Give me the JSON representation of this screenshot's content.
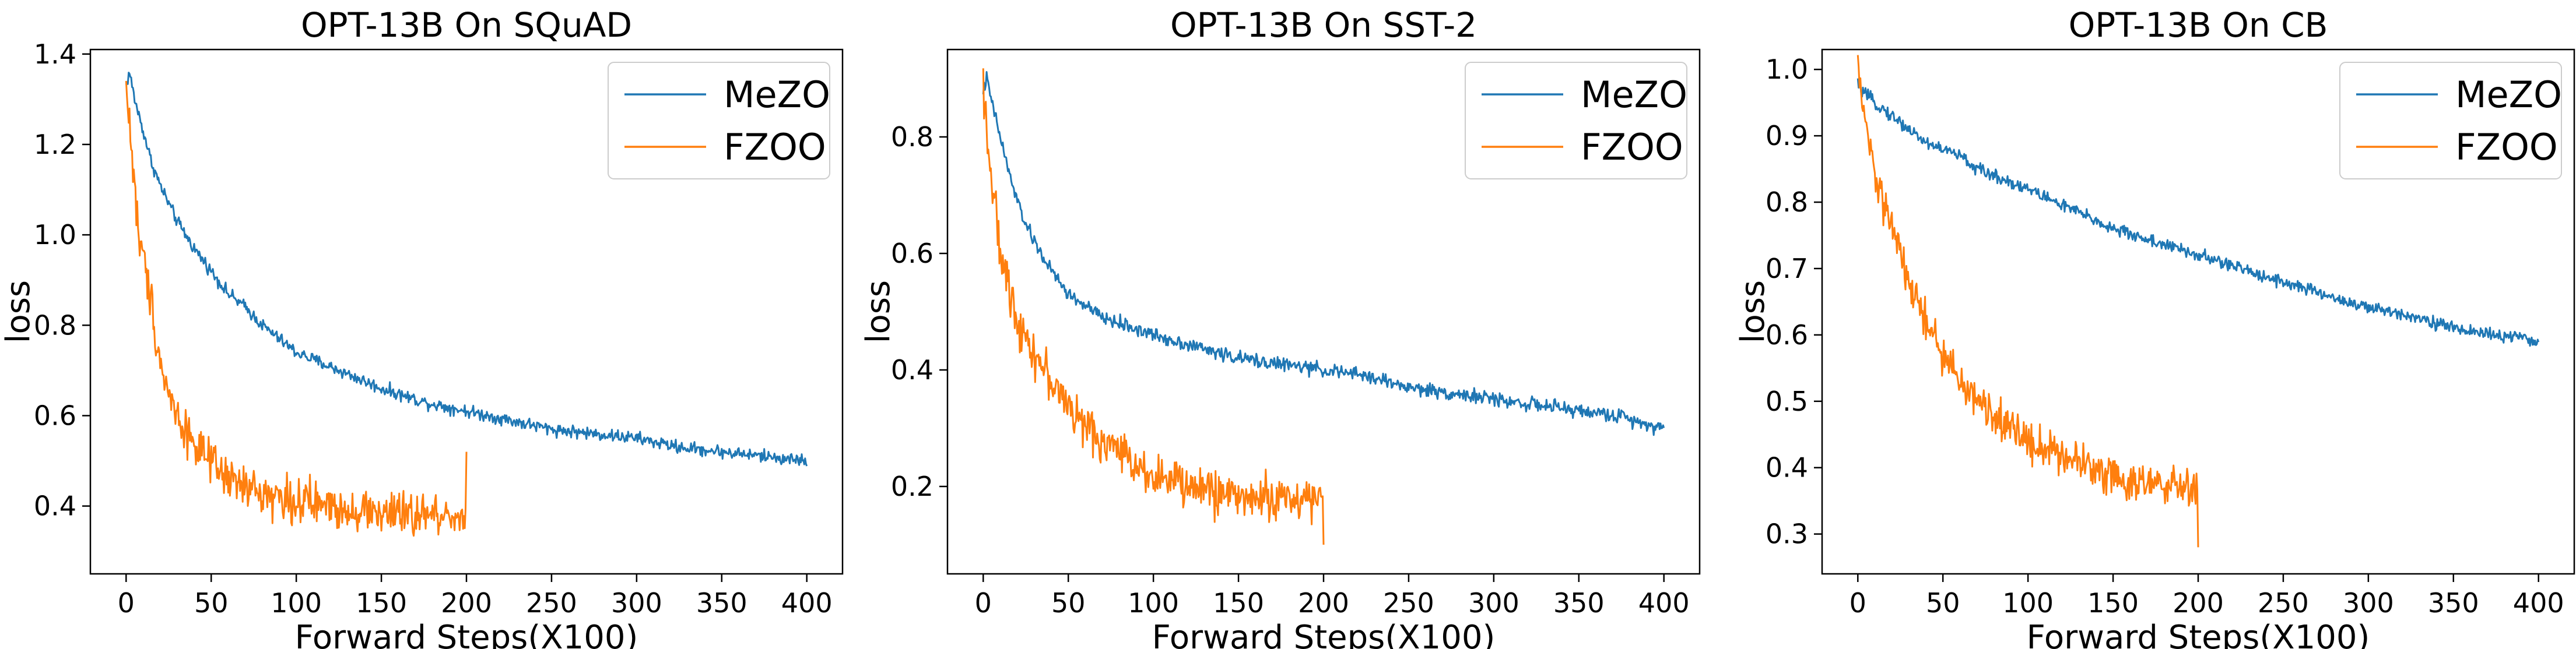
{
  "chart_data": [
    {
      "type": "line",
      "title": "OPT-13B On SQuAD",
      "xlabel": "Forward Steps(X100)",
      "ylabel": "loss",
      "xlim": [
        -21,
        421
      ],
      "ylim": [
        0.25,
        1.41
      ],
      "xticks": [
        0,
        50,
        100,
        150,
        200,
        250,
        300,
        350,
        400
      ],
      "yticks": [
        0.4,
        0.6,
        0.8,
        1.0,
        1.2,
        1.4
      ],
      "yticklabels": [
        "0.4",
        "0.6",
        "0.8",
        "1.0",
        "1.2",
        "1.4"
      ],
      "legend_position": "top-right",
      "series": [
        {
          "name": "MeZO",
          "color": "#1f77b4",
          "x": [
            0,
            2,
            5,
            10,
            15,
            20,
            25,
            30,
            40,
            50,
            60,
            70,
            80,
            90,
            100,
            125,
            150,
            175,
            200,
            225,
            250,
            275,
            300,
            325,
            350,
            375,
            400
          ],
          "y": [
            1.33,
            1.36,
            1.3,
            1.23,
            1.16,
            1.11,
            1.07,
            1.03,
            0.97,
            0.92,
            0.87,
            0.84,
            0.8,
            0.77,
            0.74,
            0.7,
            0.66,
            0.63,
            0.61,
            0.59,
            0.57,
            0.56,
            0.55,
            0.53,
            0.52,
            0.51,
            0.5
          ],
          "noise": 0.013
        },
        {
          "name": "FZOO",
          "color": "#ff7f0e",
          "x": [
            0,
            2,
            5,
            8,
            10,
            15,
            20,
            25,
            30,
            40,
            50,
            60,
            70,
            80,
            90,
            100,
            120,
            140,
            160,
            180,
            200
          ],
          "y": [
            1.33,
            1.25,
            1.1,
            0.98,
            0.95,
            0.85,
            0.72,
            0.65,
            0.6,
            0.54,
            0.49,
            0.46,
            0.44,
            0.43,
            0.42,
            0.41,
            0.4,
            0.39,
            0.38,
            0.38,
            0.38
          ],
          "noise": 0.045,
          "end_spike": 0.52
        }
      ]
    },
    {
      "type": "line",
      "title": "OPT-13B On SST-2",
      "xlabel": "Forward Steps(X100)",
      "ylabel": "loss",
      "xlim": [
        -21,
        421
      ],
      "ylim": [
        0.05,
        0.95
      ],
      "xticks": [
        0,
        50,
        100,
        150,
        200,
        250,
        300,
        350,
        400
      ],
      "yticks": [
        0.2,
        0.4,
        0.6,
        0.8
      ],
      "yticklabels": [
        "0.2",
        "0.4",
        "0.6",
        "0.8"
      ],
      "legend_position": "top-right",
      "series": [
        {
          "name": "MeZO",
          "color": "#1f77b4",
          "x": [
            0,
            2,
            5,
            10,
            15,
            20,
            25,
            30,
            40,
            50,
            60,
            70,
            80,
            90,
            100,
            125,
            150,
            175,
            200,
            225,
            250,
            275,
            300,
            325,
            350,
            375,
            400
          ],
          "y": [
            0.88,
            0.9,
            0.86,
            0.8,
            0.74,
            0.69,
            0.65,
            0.62,
            0.57,
            0.53,
            0.51,
            0.49,
            0.48,
            0.47,
            0.46,
            0.44,
            0.42,
            0.41,
            0.4,
            0.39,
            0.37,
            0.36,
            0.35,
            0.34,
            0.33,
            0.32,
            0.3
          ],
          "noise": 0.011
        },
        {
          "name": "FZOO",
          "color": "#ff7f0e",
          "x": [
            0,
            2,
            5,
            8,
            10,
            15,
            20,
            25,
            30,
            40,
            50,
            60,
            70,
            80,
            90,
            100,
            120,
            140,
            160,
            180,
            200
          ],
          "y": [
            0.9,
            0.82,
            0.72,
            0.65,
            0.6,
            0.54,
            0.49,
            0.46,
            0.43,
            0.38,
            0.34,
            0.3,
            0.28,
            0.26,
            0.24,
            0.22,
            0.2,
            0.19,
            0.18,
            0.18,
            0.18
          ],
          "noise": 0.035,
          "end_spike": 0.1
        }
      ]
    },
    {
      "type": "line",
      "title": "OPT-13B On CB",
      "xlabel": "Forward Steps(X100)",
      "ylabel": "loss",
      "xlim": [
        -21,
        421
      ],
      "ylim": [
        0.24,
        1.03
      ],
      "xticks": [
        0,
        50,
        100,
        150,
        200,
        250,
        300,
        350,
        400
      ],
      "yticks": [
        0.3,
        0.4,
        0.5,
        0.6,
        0.7,
        0.8,
        0.9,
        1.0
      ],
      "yticklabels": [
        "0.3",
        "0.4",
        "0.5",
        "0.6",
        "0.7",
        "0.8",
        "0.9",
        "1.0"
      ],
      "legend_position": "top-right",
      "series": [
        {
          "name": "MeZO",
          "color": "#1f77b4",
          "x": [
            0,
            2,
            5,
            10,
            20,
            30,
            40,
            50,
            60,
            70,
            80,
            90,
            100,
            125,
            150,
            175,
            200,
            225,
            250,
            275,
            300,
            325,
            350,
            375,
            400
          ],
          "y": [
            0.98,
            0.97,
            0.96,
            0.95,
            0.93,
            0.91,
            0.89,
            0.88,
            0.87,
            0.85,
            0.84,
            0.83,
            0.82,
            0.79,
            0.76,
            0.74,
            0.72,
            0.7,
            0.68,
            0.66,
            0.64,
            0.63,
            0.61,
            0.6,
            0.59
          ],
          "noise": 0.009
        },
        {
          "name": "FZOO",
          "color": "#ff7f0e",
          "x": [
            0,
            2,
            5,
            8,
            10,
            15,
            20,
            25,
            30,
            40,
            50,
            60,
            70,
            80,
            90,
            100,
            120,
            140,
            160,
            180,
            200
          ],
          "y": [
            1.0,
            0.96,
            0.91,
            0.87,
            0.84,
            0.8,
            0.76,
            0.72,
            0.68,
            0.62,
            0.57,
            0.53,
            0.5,
            0.48,
            0.46,
            0.44,
            0.42,
            0.4,
            0.38,
            0.37,
            0.37
          ],
          "noise": 0.028,
          "end_spike": 0.28
        }
      ]
    }
  ]
}
